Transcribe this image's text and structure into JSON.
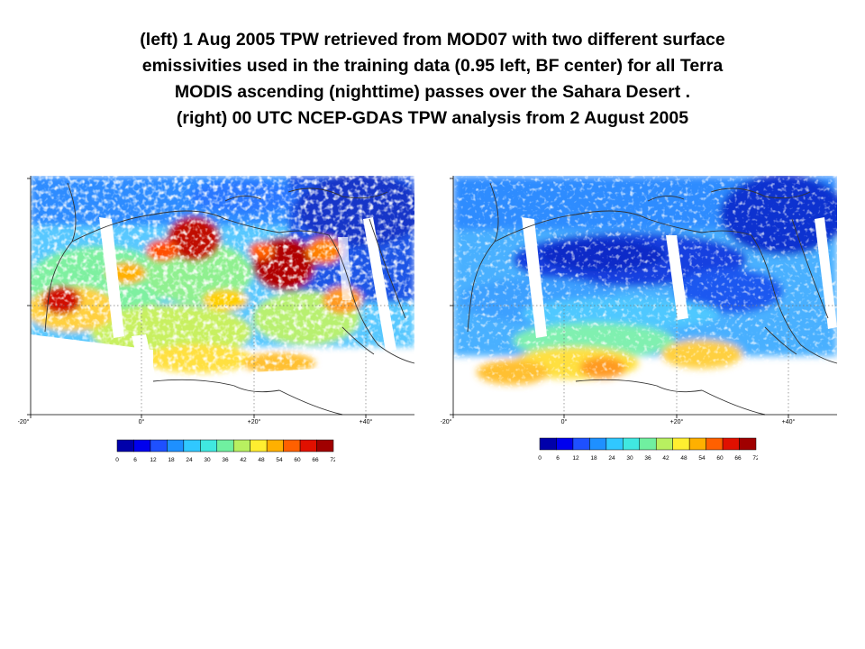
{
  "caption": {
    "line1": "(left) 1 Aug 2005 TPW retrieved from MOD07 with two different surface",
    "line2": "emissivities used in the training data (0.95 left, BF center) for all Terra",
    "line3": "MODIS ascending (nighttime) passes over the Sahara Desert .",
    "line4": "(right) 00 UTC NCEP-GDAS TPW analysis from 2 August 2005"
  },
  "maps": {
    "left": {
      "product": "MOD07 TPW retrieval",
      "date": "1 Aug 2005"
    },
    "right": {
      "product": "NCEP-GDAS TPW analysis",
      "date": "2 August 2005",
      "time": "00 UTC"
    },
    "lon_labels": [
      "-20°",
      "0°",
      "+20°",
      "+40°"
    ],
    "lon_values": [
      -20,
      0,
      20,
      40
    ]
  },
  "colorbar": {
    "ticks": [
      "0",
      "6",
      "12",
      "18",
      "24",
      "30",
      "36",
      "42",
      "48",
      "54",
      "60",
      "66",
      "72"
    ],
    "colors": [
      "#0000aa",
      "#0000ee",
      "#1e50ff",
      "#1e90ff",
      "#30c8ff",
      "#40e8e0",
      "#70f0a0",
      "#b8f060",
      "#ffee30",
      "#ffb000",
      "#ff6000",
      "#e01000",
      "#a00000"
    ]
  }
}
